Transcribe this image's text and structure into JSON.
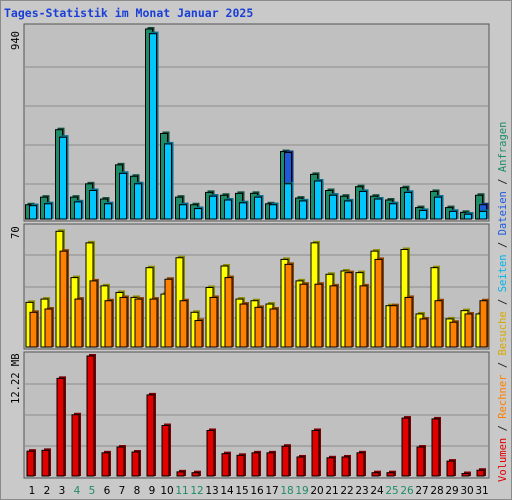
{
  "chart_data": {
    "type": "bar",
    "title": "Tages-Statistik im Monat Januar 2025",
    "categories": [
      "1",
      "2",
      "3",
      "4",
      "5",
      "6",
      "7",
      "8",
      "9",
      "10",
      "11",
      "12",
      "13",
      "14",
      "15",
      "16",
      "17",
      "18",
      "19",
      "20",
      "21",
      "22",
      "23",
      "24",
      "25",
      "26",
      "27",
      "28",
      "29",
      "30",
      "31"
    ],
    "weekend_days": [
      4,
      5,
      11,
      12,
      18,
      19,
      25,
      26
    ],
    "panels": [
      {
        "name": "top",
        "ytick_label": "940",
        "ylim": [
          0,
          1000
        ],
        "ytick": 940,
        "series": [
          {
            "name": "Anfragen",
            "color": "#1e8c68",
            "values": [
              75,
              115,
              470,
              115,
              185,
              105,
              285,
              225,
              1000,
              450,
              115,
              75,
              140,
              125,
              135,
              135,
              80,
              355,
              110,
              235,
              150,
              120,
              170,
              120,
              100,
              165,
              60,
              145,
              60,
              35,
              125
            ]
          },
          {
            "name": "Dateien",
            "color": "#1e5adc",
            "values": [
              70,
              80,
              430,
              90,
              150,
              80,
              240,
              185,
              975,
              395,
              75,
              55,
              120,
              100,
              85,
              115,
              75,
              350,
              95,
              200,
              125,
              95,
              145,
              105,
              80,
              140,
              45,
              115,
              40,
              25,
              75
            ]
          },
          {
            "name": "Seiten",
            "color": "#00c8ff",
            "values": [
              70,
              80,
              430,
              90,
              150,
              80,
              240,
              185,
              975,
              395,
              75,
              55,
              120,
              100,
              85,
              115,
              75,
              185,
              95,
              200,
              125,
              95,
              145,
              105,
              80,
              140,
              45,
              115,
              40,
              25,
              40
            ]
          }
        ]
      },
      {
        "name": "middle",
        "ytick_label": "70",
        "ylim": [
          0,
          72
        ],
        "ytick": 70,
        "series": [
          {
            "name": "Besuche",
            "color": "#ffff00",
            "values": [
              27,
              29,
              70,
              42,
              63,
              37,
              33,
              30,
              48,
              32,
              54,
              21,
              36,
              49,
              29,
              28,
              26,
              53,
              40,
              63,
              44,
              46,
              45,
              58,
              25,
              59,
              20,
              48,
              17,
              22,
              20
            ]
          },
          {
            "name": "Rechner",
            "color": "#ff8000",
            "values": [
              21,
              23,
              58,
              29,
              40,
              28,
              30,
              29,
              29,
              41,
              28,
              16,
              30,
              42,
              26,
              24,
              23,
              50,
              38,
              38,
              37,
              45,
              37,
              53,
              25,
              30,
              17,
              28,
              15,
              20,
              28
            ]
          }
        ]
      },
      {
        "name": "bottom",
        "ytick_label": "12.22 MB",
        "ylim": [
          0,
          14.5
        ],
        "ytick": 12.22,
        "series": [
          {
            "name": "Volumen",
            "color": "#e00000",
            "values": [
              3.0,
              3.1,
              11.8,
              7.4,
              14.5,
              2.8,
              3.5,
              2.9,
              9.8,
              6.1,
              0.5,
              0.4,
              5.5,
              2.7,
              2.5,
              2.8,
              2.8,
              3.6,
              2.3,
              5.5,
              2.2,
              2.3,
              2.8,
              0.4,
              0.4,
              7.0,
              3.5,
              6.9,
              1.8,
              0.3,
              0.7
            ]
          }
        ]
      }
    ],
    "right_legend": [
      {
        "text": "Volumen",
        "color": "#e00000"
      },
      {
        "text": " / ",
        "color": "#222222"
      },
      {
        "text": "Rechner",
        "color": "#ff8000"
      },
      {
        "text": " / ",
        "color": "#222222"
      },
      {
        "text": "Besuche",
        "color": "#d8a800"
      },
      {
        "text": " / ",
        "color": "#222222"
      },
      {
        "text": "Seiten",
        "color": "#00b4e8"
      },
      {
        "text": " / ",
        "color": "#222222"
      },
      {
        "text": "Dateien",
        "color": "#1e5adc"
      },
      {
        "text": " / ",
        "color": "#222222"
      },
      {
        "text": "Anfragen",
        "color": "#1e8c68"
      }
    ],
    "colors": {
      "background": "#c9c9c9",
      "plot_background": "#c0c0c0",
      "title": "#1a3fd6",
      "weekday_label": "#000000",
      "weekend_label": "#1e8c68",
      "grid": "#8c8c8c"
    },
    "grid": true
  }
}
